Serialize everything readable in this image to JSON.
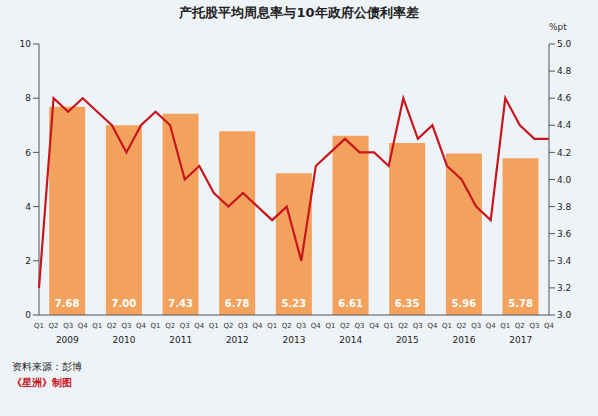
{
  "chart_data": [
    {
      "type": "bar",
      "title": "产托股平均周息率与10年政府公债利率差",
      "source": "资料来源：彭博",
      "credit": "《星洲》制图",
      "categories": [
        "2009",
        "2010",
        "2011",
        "2012",
        "2013",
        "2014",
        "2015",
        "2016",
        "2017"
      ],
      "values": [
        7.68,
        7.0,
        7.43,
        6.78,
        5.23,
        6.61,
        6.35,
        5.96,
        5.78
      ],
      "value_labels": [
        "7.68",
        "7.00",
        "7.43",
        "6.78",
        "5.23",
        "6.61",
        "6.35",
        "5.96",
        "5.78"
      ],
      "data_labels": true,
      "color": "#f2a25c",
      "ylim": [
        0,
        10
      ],
      "yticks": [
        0,
        2,
        4,
        6,
        8,
        10
      ]
    },
    {
      "type": "line",
      "categories": [
        "Q1",
        "Q2",
        "Q3",
        "Q4",
        "Q1",
        "Q2",
        "Q3",
        "Q4",
        "Q1",
        "Q2",
        "Q3",
        "Q4",
        "Q1",
        "Q2",
        "Q3",
        "Q4",
        "Q1",
        "Q2",
        "Q3",
        "Q4",
        "Q1",
        "Q2",
        "Q3",
        "Q4",
        "Q1",
        "Q2",
        "Q3",
        "Q4",
        "Q1",
        "Q2",
        "Q3",
        "Q4",
        "Q1",
        "Q2",
        "Q3",
        "Q4"
      ],
      "values": [
        3.2,
        4.6,
        4.5,
        4.6,
        4.5,
        4.4,
        4.2,
        4.4,
        4.5,
        4.4,
        4.0,
        4.1,
        3.9,
        3.8,
        3.9,
        3.8,
        3.7,
        3.8,
        3.4,
        4.1,
        4.2,
        4.3,
        4.2,
        4.2,
        4.1,
        4.6,
        4.3,
        4.4,
        4.1,
        4.0,
        3.8,
        3.7,
        4.6,
        4.4,
        4.3,
        4.3
      ],
      "color": "#c8161d",
      "axis": "y2",
      "y2label": "%pt",
      "y2lim": [
        3,
        5
      ],
      "y2ticks": [
        {
          "value": 3,
          "label": "3.0"
        },
        3.2,
        3.4,
        3.6,
        3.8,
        {
          "value": 4,
          "label": "4.0"
        },
        4.2,
        4.4,
        4.6,
        4.8,
        {
          "value": 5,
          "label": "5.0"
        }
      ]
    }
  ]
}
